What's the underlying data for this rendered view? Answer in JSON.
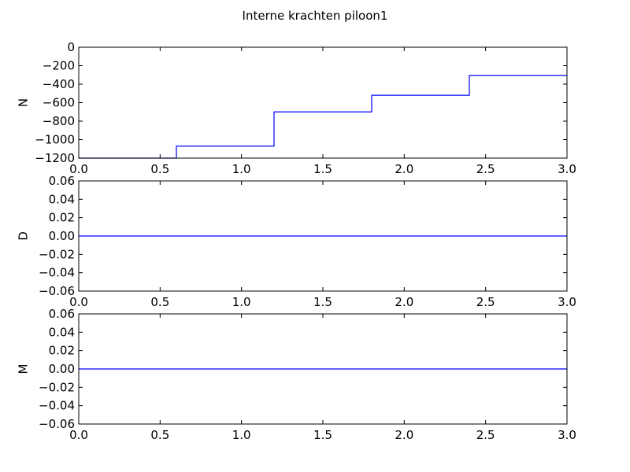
{
  "chart_data": {
    "title": "Interne krachten piloon1",
    "line_color": "#0000ff",
    "subplots": [
      {
        "type": "line",
        "drawstyle": "steps-post",
        "ylabel": "N",
        "xlim": [
          0.0,
          3.0
        ],
        "ylim": [
          -1200,
          0
        ],
        "xticks": [
          "0.0",
          "0.5",
          "1.0",
          "1.5",
          "2.0",
          "2.5",
          "3.0"
        ],
        "yticks": [
          "0",
          "−200",
          "−400",
          "−600",
          "−800",
          "−1000",
          "−1200"
        ],
        "series": [
          {
            "x": [
              0.0,
              0.6,
              1.2,
              1.8,
              2.4,
              3.0
            ],
            "y": [
              -1200,
              -1070,
              -700,
              -520,
              -305,
              -305
            ]
          }
        ]
      },
      {
        "type": "line",
        "ylabel": "D",
        "xlim": [
          0.0,
          3.0
        ],
        "ylim": [
          -0.06,
          0.06
        ],
        "xticks": [
          "0.0",
          "0.5",
          "1.0",
          "1.5",
          "2.0",
          "2.5",
          "3.0"
        ],
        "yticks": [
          "0.06",
          "0.04",
          "0.02",
          "0.00",
          "−0.02",
          "−0.04",
          "−0.06"
        ],
        "series": [
          {
            "x": [
              0.0,
              3.0
            ],
            "y": [
              0.0,
              0.0
            ]
          }
        ]
      },
      {
        "type": "line",
        "ylabel": "M",
        "xlim": [
          0.0,
          3.0
        ],
        "ylim": [
          -0.06,
          0.06
        ],
        "xticks": [
          "0.0",
          "0.5",
          "1.0",
          "1.5",
          "2.0",
          "2.5",
          "3.0"
        ],
        "yticks": [
          "0.06",
          "0.04",
          "0.02",
          "0.00",
          "−0.02",
          "−0.04",
          "−0.06"
        ],
        "series": [
          {
            "x": [
              0.0,
              3.0
            ],
            "y": [
              0.0,
              0.0
            ]
          }
        ]
      }
    ]
  }
}
